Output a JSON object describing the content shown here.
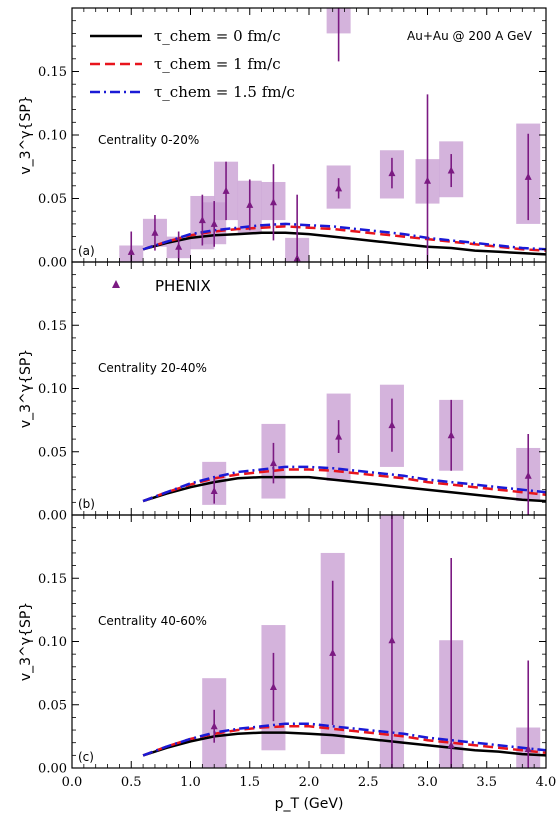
{
  "chart_data": {
    "type": "scatter",
    "collision_label": "Au+Au @ 200 A GeV",
    "xlabel": "p_T (GeV)",
    "ylabel": "v_3^γ{SP}",
    "xlim": [
      0.0,
      4.0
    ],
    "ylim": [
      0.0,
      0.2
    ],
    "x_ticks": [
      "0.0",
      "0.5",
      "1.0",
      "1.5",
      "2.0",
      "2.5",
      "3.0",
      "3.5",
      "4.0"
    ],
    "y_ticks": [
      "0.00",
      "0.05",
      "0.10",
      "0.15"
    ],
    "colors": {
      "tau0": "#000000",
      "tau1": "#e8141c",
      "tau15": "#1a1ad6",
      "phenix": "#7b1a82",
      "phenix_sys": "#c59ad0"
    },
    "legend": [
      {
        "series": "tau0",
        "label": "τ_chem = 0 fm/c"
      },
      {
        "series": "tau1",
        "label": "τ_chem = 1 fm/c"
      },
      {
        "series": "tau15",
        "label": "τ_chem = 1.5 fm/c"
      }
    ],
    "phenix_label": "PHENIX",
    "panels": [
      {
        "tag": "(a)",
        "centrality": "Centrality 0-20%",
        "curves": {
          "tau0": [
            [
              0.6,
              0.01
            ],
            [
              0.8,
              0.015
            ],
            [
              1.0,
              0.019
            ],
            [
              1.2,
              0.021
            ],
            [
              1.4,
              0.022
            ],
            [
              1.6,
              0.023
            ],
            [
              1.8,
              0.023
            ],
            [
              2.0,
              0.022
            ],
            [
              2.2,
              0.02
            ],
            [
              2.4,
              0.018
            ],
            [
              2.6,
              0.016
            ],
            [
              2.8,
              0.014
            ],
            [
              3.0,
              0.012
            ],
            [
              3.2,
              0.011
            ],
            [
              3.4,
              0.009
            ],
            [
              3.6,
              0.008
            ],
            [
              3.8,
              0.007
            ],
            [
              4.0,
              0.006
            ]
          ],
          "tau1": [
            [
              0.6,
              0.01
            ],
            [
              0.8,
              0.016
            ],
            [
              1.0,
              0.021
            ],
            [
              1.2,
              0.024
            ],
            [
              1.4,
              0.026
            ],
            [
              1.6,
              0.027
            ],
            [
              1.8,
              0.028
            ],
            [
              2.0,
              0.027
            ],
            [
              2.2,
              0.026
            ],
            [
              2.4,
              0.024
            ],
            [
              2.6,
              0.022
            ],
            [
              2.8,
              0.02
            ],
            [
              3.0,
              0.018
            ],
            [
              3.2,
              0.016
            ],
            [
              3.4,
              0.014
            ],
            [
              3.6,
              0.012
            ],
            [
              3.8,
              0.01
            ],
            [
              4.0,
              0.009
            ]
          ],
          "tau15": [
            [
              0.6,
              0.01
            ],
            [
              0.8,
              0.016
            ],
            [
              1.0,
              0.022
            ],
            [
              1.2,
              0.025
            ],
            [
              1.4,
              0.027
            ],
            [
              1.6,
              0.029
            ],
            [
              1.8,
              0.03
            ],
            [
              2.0,
              0.029
            ],
            [
              2.2,
              0.028
            ],
            [
              2.4,
              0.026
            ],
            [
              2.6,
              0.024
            ],
            [
              2.8,
              0.022
            ],
            [
              3.0,
              0.019
            ],
            [
              3.2,
              0.017
            ],
            [
              3.4,
              0.015
            ],
            [
              3.6,
              0.013
            ],
            [
              3.8,
              0.011
            ],
            [
              4.0,
              0.01
            ]
          ]
        },
        "phenix": [
          {
            "x": 0.5,
            "y": 0.008,
            "stat": 0.016,
            "syslo": 0.0,
            "syshi": 0.013
          },
          {
            "x": 0.7,
            "y": 0.023,
            "stat": 0.014,
            "syslo": 0.012,
            "syshi": 0.034
          },
          {
            "x": 0.9,
            "y": 0.012,
            "stat": 0.012,
            "syslo": 0.003,
            "syshi": 0.02
          },
          {
            "x": 1.1,
            "y": 0.033,
            "stat": 0.02,
            "syslo": 0.01,
            "syshi": 0.052
          },
          {
            "x": 1.2,
            "y": 0.03,
            "stat": 0.018,
            "syslo": 0.014,
            "syshi": 0.047
          },
          {
            "x": 1.3,
            "y": 0.056,
            "stat": 0.023,
            "syslo": 0.033,
            "syshi": 0.079
          },
          {
            "x": 1.5,
            "y": 0.045,
            "stat": 0.02,
            "syslo": 0.022,
            "syshi": 0.064
          },
          {
            "x": 1.7,
            "y": 0.047,
            "stat": 0.03,
            "syslo": 0.033,
            "syshi": 0.063
          },
          {
            "x": 1.9,
            "y": 0.003,
            "stat": 0.05,
            "syslo": 0.0,
            "syshi": 0.019
          },
          {
            "x": 2.25,
            "y": 0.058,
            "stat": 0.008,
            "syslo": 0.042,
            "syshi": 0.076
          },
          {
            "x": 2.7,
            "y": 0.07,
            "stat": 0.012,
            "syslo": 0.05,
            "syshi": 0.088
          },
          {
            "x": 3.0,
            "y": 0.064,
            "stat": 0.068,
            "syslo": 0.046,
            "syshi": 0.081
          },
          {
            "x": 3.2,
            "y": 0.072,
            "stat": 0.013,
            "syslo": 0.051,
            "syshi": 0.095
          },
          {
            "x": 3.85,
            "y": 0.067,
            "stat": 0.034,
            "syslo": 0.03,
            "syshi": 0.109
          },
          {
            "x": 2.25,
            "y": 0.22,
            "stat": 0.062,
            "syslo": 0.18,
            "syshi": 0.26
          }
        ]
      },
      {
        "tag": "(b)",
        "centrality": "Centrality 20-40%",
        "curves": {
          "tau0": [
            [
              0.6,
              0.011
            ],
            [
              0.8,
              0.017
            ],
            [
              1.0,
              0.022
            ],
            [
              1.2,
              0.026
            ],
            [
              1.4,
              0.029
            ],
            [
              1.6,
              0.03
            ],
            [
              1.8,
              0.03
            ],
            [
              2.0,
              0.03
            ],
            [
              2.2,
              0.028
            ],
            [
              2.4,
              0.026
            ],
            [
              2.6,
              0.024
            ],
            [
              2.8,
              0.022
            ],
            [
              3.0,
              0.02
            ],
            [
              3.2,
              0.018
            ],
            [
              3.4,
              0.016
            ],
            [
              3.6,
              0.014
            ],
            [
              3.8,
              0.012
            ],
            [
              4.0,
              0.011
            ]
          ],
          "tau1": [
            [
              0.6,
              0.011
            ],
            [
              0.8,
              0.018
            ],
            [
              1.0,
              0.024
            ],
            [
              1.2,
              0.029
            ],
            [
              1.4,
              0.032
            ],
            [
              1.6,
              0.034
            ],
            [
              1.8,
              0.036
            ],
            [
              2.0,
              0.036
            ],
            [
              2.2,
              0.035
            ],
            [
              2.4,
              0.033
            ],
            [
              2.6,
              0.031
            ],
            [
              2.8,
              0.029
            ],
            [
              3.0,
              0.026
            ],
            [
              3.2,
              0.024
            ],
            [
              3.4,
              0.022
            ],
            [
              3.6,
              0.02
            ],
            [
              3.8,
              0.018
            ],
            [
              4.0,
              0.016
            ]
          ],
          "tau15": [
            [
              0.6,
              0.011
            ],
            [
              0.8,
              0.018
            ],
            [
              1.0,
              0.025
            ],
            [
              1.2,
              0.03
            ],
            [
              1.4,
              0.034
            ],
            [
              1.6,
              0.036
            ],
            [
              1.8,
              0.038
            ],
            [
              2.0,
              0.038
            ],
            [
              2.2,
              0.037
            ],
            [
              2.4,
              0.035
            ],
            [
              2.6,
              0.033
            ],
            [
              2.8,
              0.031
            ],
            [
              3.0,
              0.028
            ],
            [
              3.2,
              0.026
            ],
            [
              3.4,
              0.024
            ],
            [
              3.6,
              0.022
            ],
            [
              3.8,
              0.02
            ],
            [
              4.0,
              0.018
            ]
          ]
        },
        "phenix": [
          {
            "x": 1.2,
            "y": 0.019,
            "stat": 0.01,
            "syslo": 0.008,
            "syshi": 0.042
          },
          {
            "x": 1.7,
            "y": 0.041,
            "stat": 0.016,
            "syslo": 0.013,
            "syshi": 0.072
          },
          {
            "x": 2.25,
            "y": 0.062,
            "stat": 0.013,
            "syslo": 0.027,
            "syshi": 0.096
          },
          {
            "x": 2.7,
            "y": 0.071,
            "stat": 0.021,
            "syslo": 0.038,
            "syshi": 0.103
          },
          {
            "x": 3.2,
            "y": 0.063,
            "stat": 0.028,
            "syslo": 0.035,
            "syshi": 0.091
          },
          {
            "x": 3.85,
            "y": 0.031,
            "stat": 0.033,
            "syslo": 0.011,
            "syshi": 0.053
          }
        ]
      },
      {
        "tag": "(c)",
        "centrality": "Centrality 40-60%",
        "curves": {
          "tau0": [
            [
              0.6,
              0.01
            ],
            [
              0.8,
              0.016
            ],
            [
              1.0,
              0.021
            ],
            [
              1.2,
              0.025
            ],
            [
              1.4,
              0.027
            ],
            [
              1.6,
              0.028
            ],
            [
              1.8,
              0.028
            ],
            [
              2.0,
              0.027
            ],
            [
              2.2,
              0.026
            ],
            [
              2.4,
              0.024
            ],
            [
              2.6,
              0.022
            ],
            [
              2.8,
              0.02
            ],
            [
              3.0,
              0.018
            ],
            [
              3.2,
              0.016
            ],
            [
              3.4,
              0.014
            ],
            [
              3.6,
              0.013
            ],
            [
              3.8,
              0.011
            ],
            [
              4.0,
              0.01
            ]
          ],
          "tau1": [
            [
              0.6,
              0.01
            ],
            [
              0.8,
              0.017
            ],
            [
              1.0,
              0.023
            ],
            [
              1.2,
              0.027
            ],
            [
              1.4,
              0.03
            ],
            [
              1.6,
              0.032
            ],
            [
              1.8,
              0.033
            ],
            [
              2.0,
              0.033
            ],
            [
              2.2,
              0.031
            ],
            [
              2.4,
              0.029
            ],
            [
              2.6,
              0.027
            ],
            [
              2.8,
              0.025
            ],
            [
              3.0,
              0.022
            ],
            [
              3.2,
              0.02
            ],
            [
              3.4,
              0.018
            ],
            [
              3.6,
              0.016
            ],
            [
              3.8,
              0.014
            ],
            [
              4.0,
              0.012
            ]
          ],
          "tau15": [
            [
              0.6,
              0.01
            ],
            [
              0.8,
              0.017
            ],
            [
              1.0,
              0.023
            ],
            [
              1.2,
              0.028
            ],
            [
              1.4,
              0.031
            ],
            [
              1.6,
              0.033
            ],
            [
              1.8,
              0.035
            ],
            [
              2.0,
              0.035
            ],
            [
              2.2,
              0.033
            ],
            [
              2.4,
              0.031
            ],
            [
              2.6,
              0.029
            ],
            [
              2.8,
              0.027
            ],
            [
              3.0,
              0.024
            ],
            [
              3.2,
              0.022
            ],
            [
              3.4,
              0.02
            ],
            [
              3.6,
              0.018
            ],
            [
              3.8,
              0.016
            ],
            [
              4.0,
              0.014
            ]
          ]
        },
        "phenix": [
          {
            "x": 1.2,
            "y": 0.033,
            "stat": 0.013,
            "syslo": 0.0,
            "syshi": 0.071
          },
          {
            "x": 1.7,
            "y": 0.064,
            "stat": 0.027,
            "syslo": 0.014,
            "syshi": 0.113
          },
          {
            "x": 2.2,
            "y": 0.091,
            "stat": 0.057,
            "syslo": 0.011,
            "syshi": 0.17
          },
          {
            "x": 2.7,
            "y": 0.101,
            "stat": 0.11,
            "syslo": 0.0,
            "syshi": 0.21
          },
          {
            "x": 3.2,
            "y": 0.018,
            "stat": 0.148,
            "syslo": 0.0,
            "syshi": 0.101
          },
          {
            "x": 3.85,
            "y": 0.015,
            "stat": 0.07,
            "syslo": 0.0,
            "syshi": 0.032
          }
        ]
      }
    ]
  }
}
